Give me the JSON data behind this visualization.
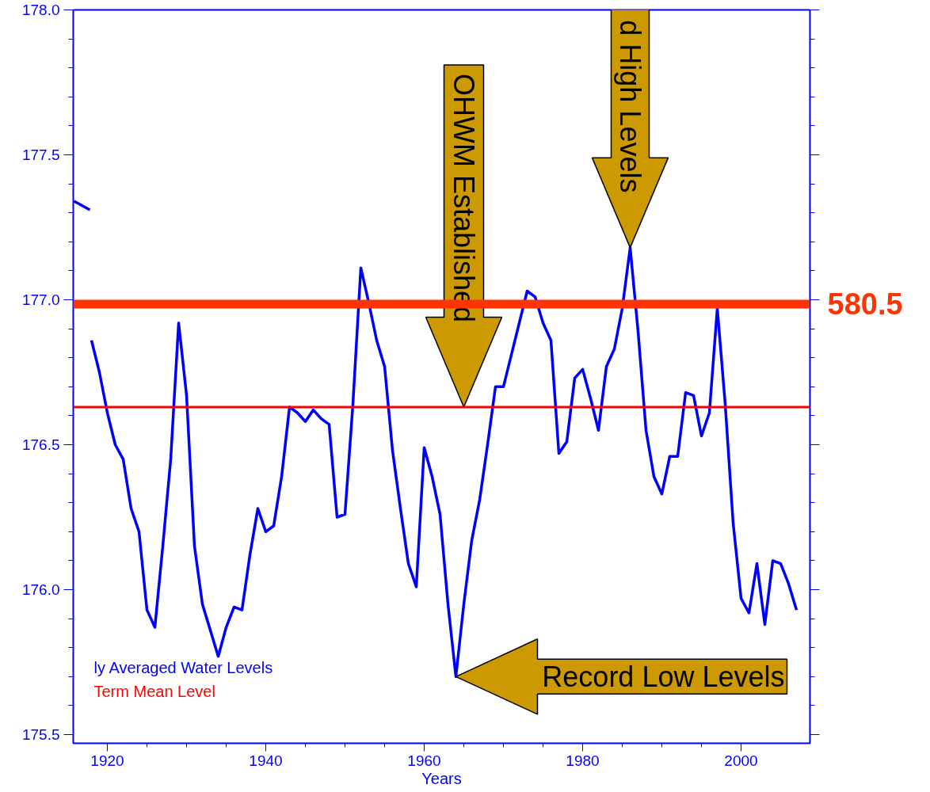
{
  "chart_data": {
    "type": "line",
    "xlabel": "Years",
    "x": [
      1915.8,
      1917.8,
      1917.9,
      1918,
      1919,
      1920,
      1921,
      1922,
      1923,
      1924,
      1925,
      1926,
      1927,
      1928,
      1929,
      1930,
      1931,
      1932,
      1933,
      1934,
      1935,
      1936,
      1937,
      1938,
      1939,
      1940,
      1941,
      1942,
      1943,
      1944,
      1945,
      1946,
      1947,
      1948,
      1949,
      1950,
      1951,
      1952,
      1953,
      1954,
      1955,
      1956,
      1957,
      1958,
      1959,
      1960,
      1961,
      1962,
      1963,
      1964,
      1965,
      1966,
      1967,
      1968,
      1969,
      1970,
      1971,
      1972,
      1973,
      1974,
      1975,
      1976,
      1977,
      1978,
      1979,
      1980,
      1981,
      1982,
      1983,
      1984,
      1985,
      1986,
      1987,
      1988,
      1989,
      1990,
      1991,
      1992,
      1993,
      1994,
      1995,
      1996,
      1997,
      1998,
      1999,
      2000,
      2001,
      2002,
      2003,
      2004,
      2005,
      2006,
      2007
    ],
    "series": [
      {
        "name": "ly Averaged Water Levels",
        "color": "#0000ff",
        "values": [
          177.34,
          177.31,
          null,
          176.86,
          176.75,
          176.61,
          176.5,
          176.45,
          176.28,
          176.2,
          175.93,
          175.87,
          176.15,
          176.45,
          176.92,
          176.67,
          176.15,
          175.95,
          175.86,
          175.77,
          175.87,
          175.94,
          175.93,
          176.12,
          176.28,
          176.2,
          176.22,
          176.39,
          176.63,
          176.61,
          176.58,
          176.62,
          176.59,
          176.57,
          176.25,
          176.26,
          176.64,
          177.11,
          176.99,
          176.86,
          176.77,
          176.48,
          176.28,
          176.09,
          176.01,
          176.49,
          176.39,
          176.26,
          175.95,
          175.7,
          175.95,
          176.17,
          176.31,
          176.5,
          176.7,
          176.7,
          176.81,
          176.92,
          177.03,
          177.01,
          176.92,
          176.86,
          176.47,
          176.51,
          176.73,
          176.76,
          176.66,
          176.55,
          176.77,
          176.83,
          176.97,
          177.18,
          176.89,
          176.55,
          176.39,
          176.33,
          176.46,
          176.46,
          176.68,
          176.67,
          176.53,
          176.61,
          176.97,
          176.64,
          176.23,
          175.97,
          175.92,
          176.09,
          175.88,
          176.1,
          176.09,
          176.02,
          175.93
        ]
      }
    ],
    "xlim": [
      1915.7,
      2008.7
    ],
    "ylim": [
      175.47,
      178.0
    ],
    "xticks": [
      1920,
      1940,
      1960,
      1980,
      2000
    ],
    "yticks": [
      175.5,
      {
        "value": 176,
        "label": "176.0"
      },
      176.5,
      {
        "value": 177,
        "label": "177.0"
      },
      177.5,
      {
        "value": 178,
        "label": "178.0"
      }
    ],
    "ref_lines": [
      {
        "axis": "y",
        "value": 176.985,
        "color": "#ff3300"
      },
      {
        "axis": "y",
        "value": 176.63,
        "label": "Term Mean Level",
        "color": "#ff0000"
      }
    ],
    "annotations": [
      {
        "text": "OHWM Established",
        "x": 1965,
        "y": 176.63
      },
      {
        "text": "d High Levels",
        "x": 1986,
        "y": 177.18
      },
      "Record Low Levels",
      "580.5"
    ],
    "legend": "bottom left",
    "grid": false,
    "marker": "none",
    "line_style": "solid"
  }
}
